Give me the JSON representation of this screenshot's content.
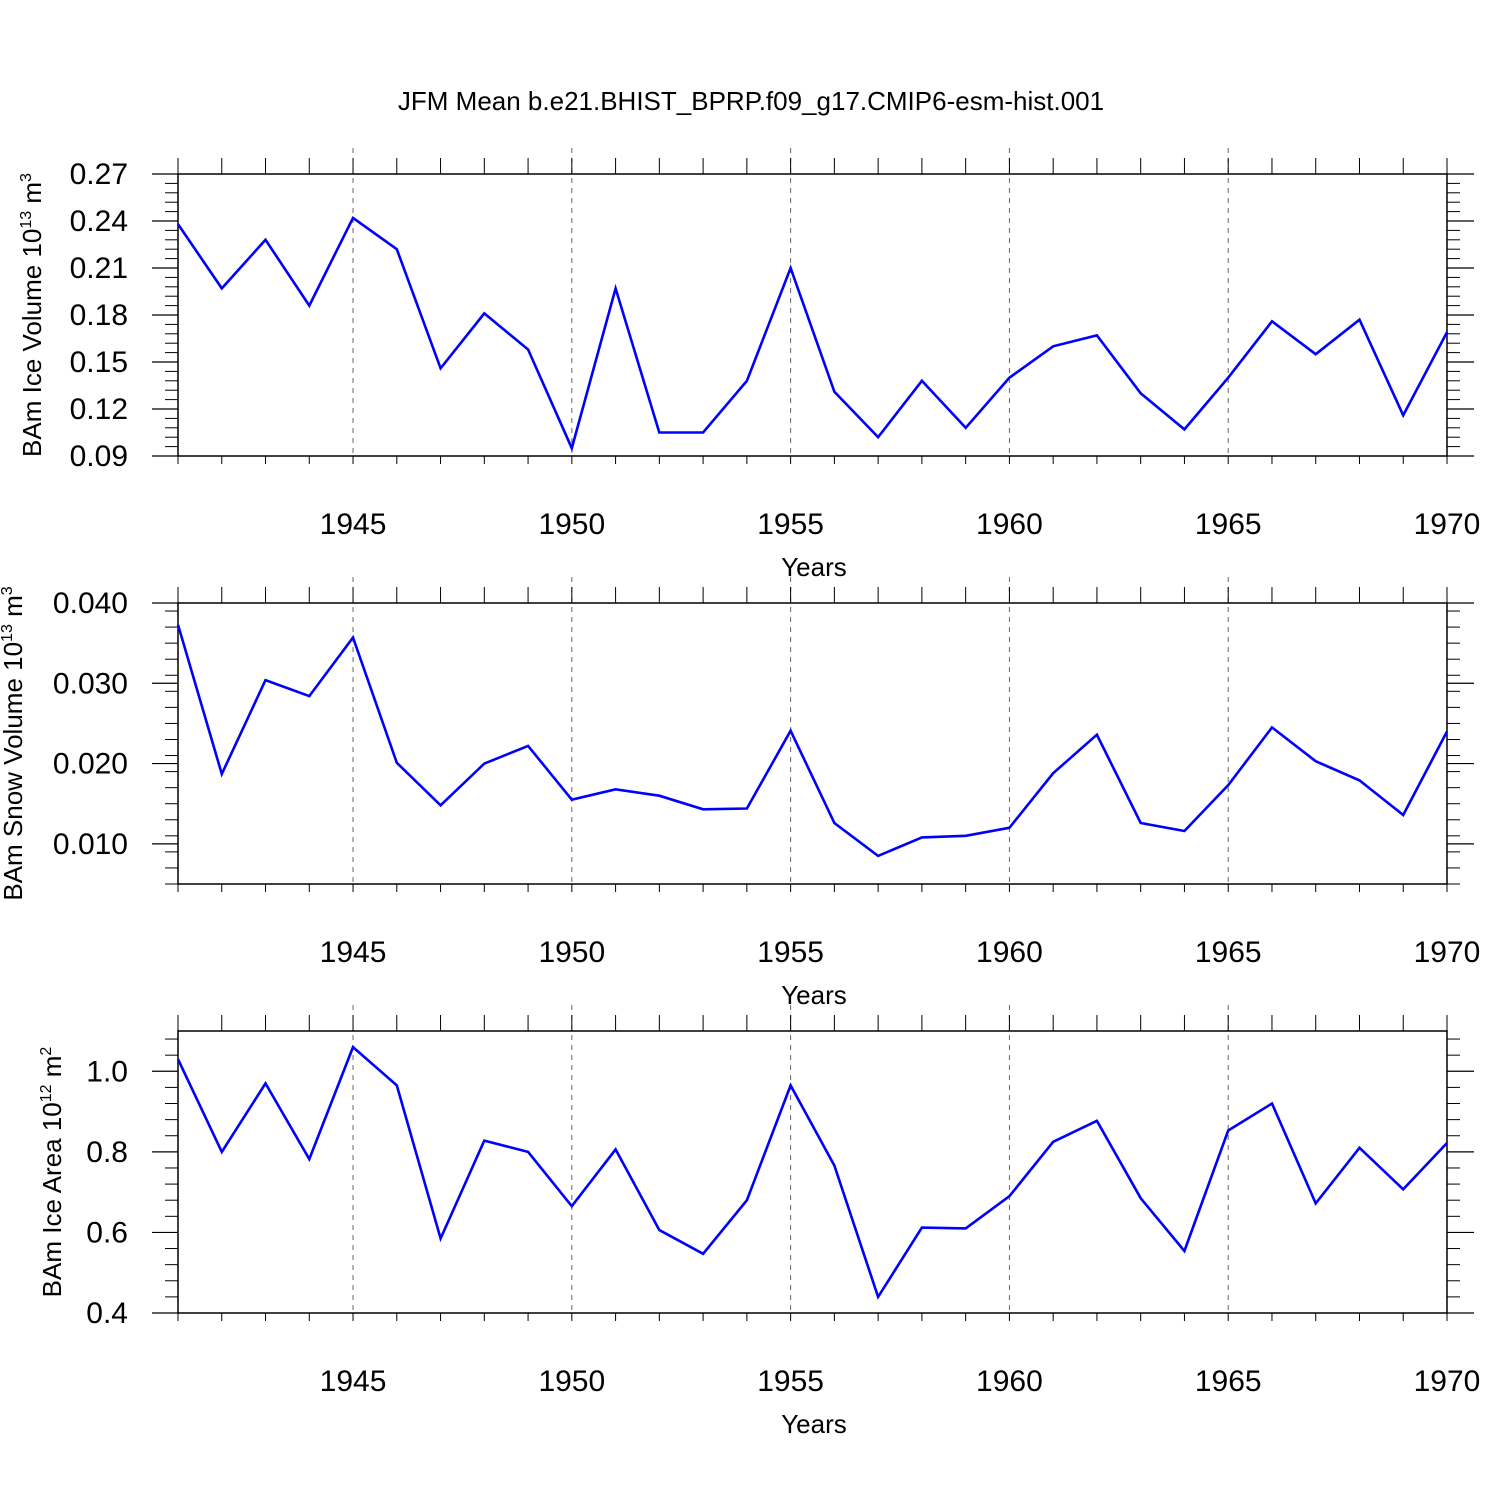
{
  "title": "JFM Mean b.e21.BHIST_BPRP.f09_g17.CMIP6-esm-hist.001",
  "chart_data": [
    {
      "type": "line",
      "ylabel": {
        "main": "BAm Ice Volume 10",
        "exp": "13",
        "mid": " m",
        "unit_exp": "3"
      },
      "xlabel": "Years",
      "ylim": [
        0.09,
        0.27
      ],
      "yticks": [
        0.09,
        0.12,
        0.15,
        0.18,
        0.21,
        0.24,
        0.27
      ],
      "ytick_labels": [
        "0.09",
        "0.12",
        "0.15",
        "0.18",
        "0.21",
        "0.24",
        "0.27"
      ],
      "xlim": [
        1941,
        1970
      ],
      "xticks": [
        1945,
        1950,
        1955,
        1960,
        1965,
        1970
      ],
      "xtick_labels": [
        "1945",
        "1950",
        "1955",
        "1960",
        "1965",
        "1970"
      ],
      "vgrid": [
        1945,
        1950,
        1955,
        1960,
        1965
      ],
      "color": "#0000ff",
      "x": [
        1941,
        1942,
        1943,
        1944,
        1945,
        1946,
        1947,
        1948,
        1949,
        1950,
        1951,
        1952,
        1953,
        1954,
        1955,
        1956,
        1957,
        1958,
        1959,
        1960,
        1961,
        1962,
        1963,
        1964,
        1965,
        1966,
        1967,
        1968,
        1969,
        1970
      ],
      "values": [
        0.238,
        0.197,
        0.228,
        0.186,
        0.242,
        0.222,
        0.146,
        0.181,
        0.158,
        0.095,
        0.197,
        0.105,
        0.105,
        0.138,
        0.21,
        0.131,
        0.102,
        0.138,
        0.108,
        0.14,
        0.16,
        0.167,
        0.13,
        0.107,
        0.14,
        0.176,
        0.155,
        0.177,
        0.116,
        0.169
      ]
    },
    {
      "type": "line",
      "ylabel": {
        "main": "BAm Snow Volume 10",
        "exp": "13",
        "mid": " m",
        "unit_exp": "3"
      },
      "xlabel": "Years",
      "ylim": [
        0.005,
        0.04
      ],
      "yticks": [
        0.01,
        0.02,
        0.03,
        0.04
      ],
      "ytick_labels": [
        "0.010",
        "0.020",
        "0.030",
        "0.040"
      ],
      "xlim": [
        1941,
        1970
      ],
      "xticks": [
        1945,
        1950,
        1955,
        1960,
        1965,
        1970
      ],
      "xtick_labels": [
        "1945",
        "1950",
        "1955",
        "1960",
        "1965",
        "1970"
      ],
      "vgrid": [
        1945,
        1950,
        1955,
        1960,
        1965
      ],
      "color": "#0000ff",
      "x": [
        1941,
        1942,
        1943,
        1944,
        1945,
        1946,
        1947,
        1948,
        1949,
        1950,
        1951,
        1952,
        1953,
        1954,
        1955,
        1956,
        1957,
        1958,
        1959,
        1960,
        1961,
        1962,
        1963,
        1964,
        1965,
        1966,
        1967,
        1968,
        1969,
        1970
      ],
      "values": [
        0.0373,
        0.0187,
        0.0304,
        0.0284,
        0.0357,
        0.0201,
        0.0148,
        0.02,
        0.0222,
        0.0155,
        0.0168,
        0.016,
        0.0143,
        0.0144,
        0.0241,
        0.0126,
        0.0085,
        0.0108,
        0.011,
        0.012,
        0.0188,
        0.0236,
        0.0126,
        0.0116,
        0.0173,
        0.0245,
        0.0203,
        0.0179,
        0.0136,
        0.024
      ]
    },
    {
      "type": "line",
      "ylabel": {
        "main": "BAm Ice Area 10",
        "exp": "12",
        "mid": " m",
        "unit_exp": "2"
      },
      "xlabel": "Years",
      "ylim": [
        0.4,
        1.1
      ],
      "yticks": [
        0.4,
        0.6,
        0.8,
        1.0
      ],
      "ytick_labels": [
        "0.4",
        "0.6",
        "0.8",
        "1.0"
      ],
      "xlim": [
        1941,
        1970
      ],
      "xticks": [
        1945,
        1950,
        1955,
        1960,
        1965,
        1970
      ],
      "xtick_labels": [
        "1945",
        "1950",
        "1955",
        "1960",
        "1965",
        "1970"
      ],
      "vgrid": [
        1945,
        1950,
        1955,
        1960,
        1965
      ],
      "color": "#0000ff",
      "x": [
        1941,
        1942,
        1943,
        1944,
        1945,
        1946,
        1947,
        1948,
        1949,
        1950,
        1951,
        1952,
        1953,
        1954,
        1955,
        1956,
        1957,
        1958,
        1959,
        1960,
        1961,
        1962,
        1963,
        1964,
        1965,
        1966,
        1967,
        1968,
        1969,
        1970
      ],
      "values": [
        1.03,
        0.8,
        0.97,
        0.782,
        1.06,
        0.965,
        0.585,
        0.828,
        0.8,
        0.665,
        0.806,
        0.606,
        0.547,
        0.68,
        0.965,
        0.766,
        0.44,
        0.612,
        0.61,
        0.69,
        0.825,
        0.877,
        0.685,
        0.554,
        0.853,
        0.92,
        0.672,
        0.81,
        0.707,
        0.822
      ]
    }
  ]
}
